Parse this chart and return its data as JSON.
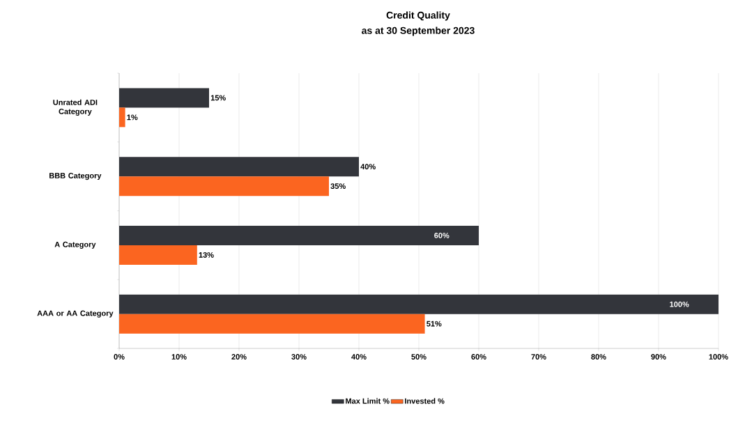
{
  "chart_data": {
    "type": "bar",
    "orientation": "horizontal",
    "title": "Credit Quality",
    "subtitle": "as at 30 September 2023",
    "categories": [
      "Unrated ADI Category",
      "BBB Category",
      "A Category",
      "AAA or AA Category"
    ],
    "series": [
      {
        "name": "Max Limit %",
        "color": "#33353b",
        "values": [
          15,
          40,
          60,
          100
        ],
        "value_labels": [
          "15%",
          "40%",
          "60%",
          "100%"
        ]
      },
      {
        "name": "Invested %",
        "color": "#fb6520",
        "values": [
          1,
          35,
          13,
          51
        ],
        "value_labels": [
          "1%",
          "35%",
          "13%",
          "51%"
        ]
      }
    ],
    "xlim": [
      0,
      100
    ],
    "xticks": [
      {
        "value": 0,
        "label": "0%"
      },
      {
        "value": 10,
        "label": "10%"
      },
      {
        "value": 20,
        "label": "20%"
      },
      {
        "value": 30,
        "label": "30%"
      },
      {
        "value": 40,
        "label": "40%"
      },
      {
        "value": 50,
        "label": "50%"
      },
      {
        "value": 60,
        "label": "60%"
      },
      {
        "value": 70,
        "label": "70%"
      },
      {
        "value": 80,
        "label": "80%"
      },
      {
        "value": 90,
        "label": "90%"
      },
      {
        "value": 100,
        "label": "100%"
      }
    ],
    "grid": "x",
    "legend": "bottom"
  }
}
